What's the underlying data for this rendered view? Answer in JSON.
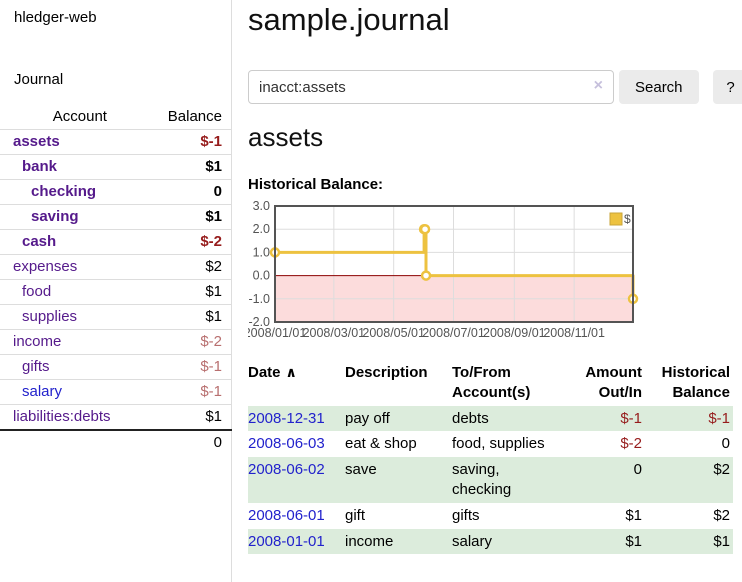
{
  "colors": {
    "link_purple": "#551a8b",
    "link_blue": "#2222cc",
    "negative_dark": "#961c1c",
    "negative_faded": "#b86f6f",
    "row_stripe_green": "#dcecdc",
    "series_gold": "#edc240",
    "series_gold_border": "#c9a43a",
    "negative_region_pink": "#fcdcdc",
    "zero_line_red": "#8b0000",
    "chart_border": "#545454",
    "grid_line": "#dddddd",
    "tick_text": "#545454",
    "button_gray": "#ebebeb"
  },
  "sidebar": {
    "brand": "hledger-web",
    "nav_journal": "Journal",
    "columns": {
      "account": "Account",
      "balance": "Balance"
    },
    "accounts": [
      {
        "name": "assets",
        "balance": "$-1",
        "level": 1,
        "bold": true,
        "name_color": "purple",
        "balance_tone": "dark-negative"
      },
      {
        "name": "bank",
        "balance": "$1",
        "level": 2,
        "bold": true,
        "name_color": "purple",
        "balance_tone": "normal"
      },
      {
        "name": "checking",
        "balance": "0",
        "level": 3,
        "bold": true,
        "name_color": "purple",
        "balance_tone": "normal"
      },
      {
        "name": "saving",
        "balance": "$1",
        "level": 3,
        "bold": true,
        "name_color": "purple",
        "balance_tone": "normal"
      },
      {
        "name": "cash",
        "balance": "$-2",
        "level": 2,
        "bold": true,
        "name_color": "purple",
        "balance_tone": "dark-negative"
      },
      {
        "name": "expenses",
        "balance": "$2",
        "level": 1,
        "bold": false,
        "name_color": "purple",
        "balance_tone": "normal"
      },
      {
        "name": "food",
        "balance": "$1",
        "level": 2,
        "bold": false,
        "name_color": "purple",
        "balance_tone": "normal"
      },
      {
        "name": "supplies",
        "balance": "$1",
        "level": 2,
        "bold": false,
        "name_color": "purple",
        "balance_tone": "normal"
      },
      {
        "name": "income",
        "balance": "$-2",
        "level": 1,
        "bold": false,
        "name_color": "purple",
        "balance_tone": "faded-negative"
      },
      {
        "name": "gifts",
        "balance": "$-1",
        "level": 2,
        "bold": false,
        "name_color": "purple",
        "balance_tone": "faded-negative"
      },
      {
        "name": "salary",
        "balance": "$-1",
        "level": 2,
        "bold": false,
        "name_color": "blue",
        "balance_tone": "faded-negative"
      },
      {
        "name": "liabilities:debts",
        "balance": "$1",
        "level": 1,
        "bold": false,
        "name_color": "purple",
        "balance_tone": "normal"
      }
    ],
    "total": "0"
  },
  "header": {
    "title": "sample.journal"
  },
  "search": {
    "value": "inacct:assets",
    "clear_icon": "×",
    "search_button": "Search",
    "help_button": "?"
  },
  "account_page": {
    "heading": "assets",
    "chart_title": "Historical Balance:"
  },
  "chart_data": {
    "type": "line",
    "title": "Historical Balance",
    "x_type": "date",
    "xrange": [
      "2008-01-01",
      "2008-12-31"
    ],
    "ylim": [
      -2,
      3
    ],
    "yticks": [
      "3.0",
      "2.0",
      "1.0",
      "0.0",
      "-1.0",
      "-2.0"
    ],
    "xticks": [
      "2008/01/01",
      "2008/03/01",
      "2008/05/01",
      "2008/07/01",
      "2008/09/01",
      "2008/11/01"
    ],
    "grid": true,
    "legend_position": "top-right",
    "series": [
      {
        "name": "$",
        "color": "#edc240",
        "steps": true,
        "points": [
          {
            "date": "2008-01-01",
            "value": 1
          },
          {
            "date": "2008-06-01",
            "value": 2
          },
          {
            "date": "2008-06-02",
            "value": 2
          },
          {
            "date": "2008-06-03",
            "value": 0
          },
          {
            "date": "2008-12-31",
            "value": -1
          }
        ]
      }
    ],
    "negative_region_fill": "#fcdcdc",
    "zero_line_color": "#8b0000"
  },
  "register": {
    "sort_icon": "∧",
    "columns": [
      "Date",
      "Description",
      "To/From Account(s)",
      "Amount Out/In",
      "Historical Balance"
    ],
    "rows": [
      {
        "date": "2008-12-31",
        "description": "pay off",
        "accounts": "debts",
        "amount": "$-1",
        "amount_tone": "negative",
        "balance": "$-1",
        "balance_tone": "negative"
      },
      {
        "date": "2008-06-03",
        "description": "eat & shop",
        "accounts": "food, supplies",
        "amount": "$-2",
        "amount_tone": "negative",
        "balance": "0",
        "balance_tone": "normal"
      },
      {
        "date": "2008-06-02",
        "description": "save",
        "accounts": "saving, checking",
        "amount": "0",
        "amount_tone": "normal",
        "balance": "$2",
        "balance_tone": "normal"
      },
      {
        "date": "2008-06-01",
        "description": "gift",
        "accounts": "gifts",
        "amount": "$1",
        "amount_tone": "normal",
        "balance": "$2",
        "balance_tone": "normal"
      },
      {
        "date": "2008-01-01",
        "description": "income",
        "accounts": "salary",
        "amount": "$1",
        "amount_tone": "normal",
        "balance": "$1",
        "balance_tone": "normal"
      }
    ]
  }
}
